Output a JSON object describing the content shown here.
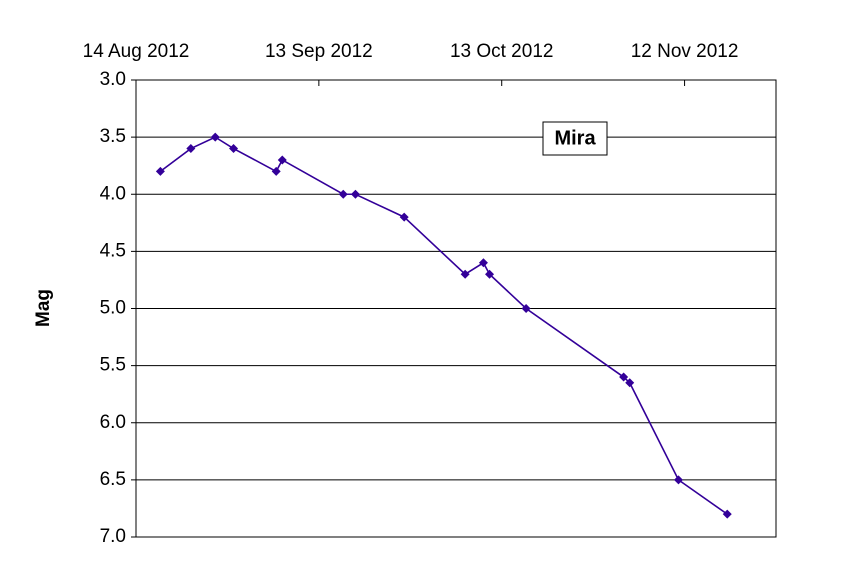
{
  "chart_data": {
    "type": "line",
    "y_label": "Mag",
    "annotation": "Mira",
    "x": [
      "2012-08-18",
      "2012-08-23",
      "2012-08-27",
      "2012-08-30",
      "2012-09-06",
      "2012-09-07",
      "2012-09-17",
      "2012-09-19",
      "2012-09-27",
      "2012-10-07",
      "2012-10-10",
      "2012-10-11",
      "2012-10-17",
      "2012-11-02",
      "2012-11-03",
      "2012-11-11",
      "2012-11-19"
    ],
    "values": [
      3.8,
      3.6,
      3.5,
      3.6,
      3.8,
      3.7,
      4.0,
      4.0,
      4.2,
      4.7,
      4.6,
      4.7,
      5.0,
      5.6,
      5.65,
      6.5,
      6.8
    ],
    "color": "#330099",
    "xlim": [
      "2012-08-14",
      "2012-11-27"
    ],
    "xticks": [
      {
        "value": "2012-08-14",
        "label": "14 Aug 2012"
      },
      {
        "value": "2012-09-13",
        "label": "13 Sep 2012"
      },
      {
        "value": "2012-10-13",
        "label": "13 Oct 2012"
      },
      {
        "value": "2012-11-12",
        "label": "12 Nov 2012"
      }
    ],
    "ylim": [
      3,
      7
    ],
    "y_inverted": true,
    "yticks": [
      {
        "value": 3,
        "label": "3.0"
      },
      {
        "value": 3.5,
        "label": "3.5"
      },
      {
        "value": 4,
        "label": "4.0"
      },
      {
        "value": 4.5,
        "label": "4.5"
      },
      {
        "value": 5,
        "label": "5.0"
      },
      {
        "value": 5.5,
        "label": "5.5"
      },
      {
        "value": 6,
        "label": "6.0"
      },
      {
        "value": 6.5,
        "label": "6.5"
      },
      {
        "value": 7,
        "label": "7.0"
      }
    ],
    "grid": true
  }
}
